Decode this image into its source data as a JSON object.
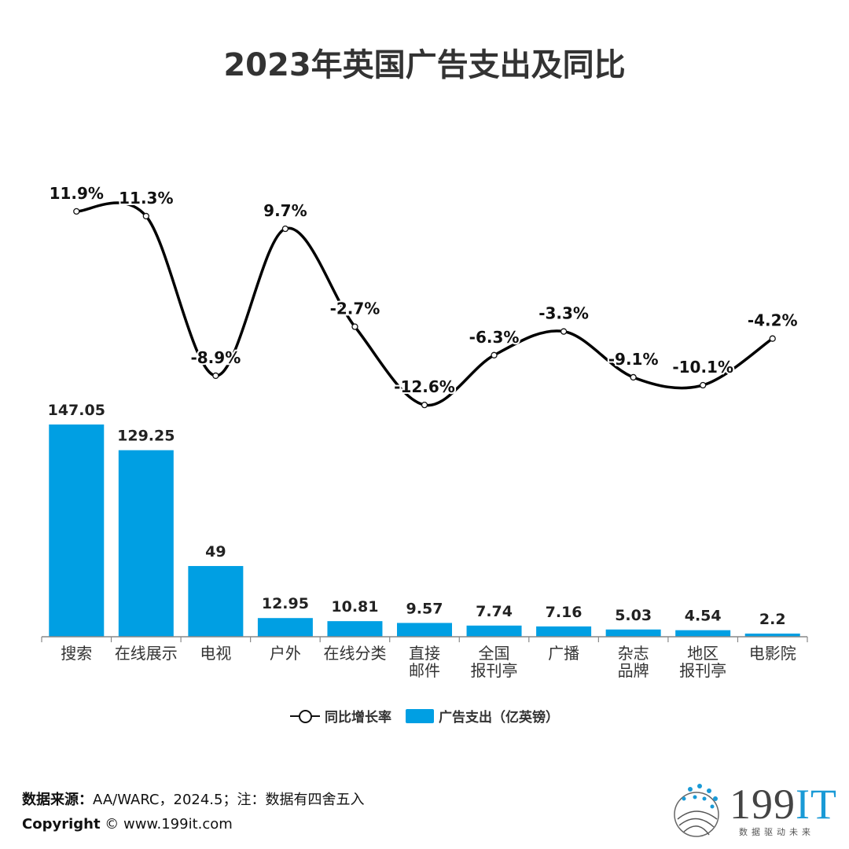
{
  "title": "2023年英国广告支出及同比",
  "chart_data": {
    "type": "bar+line",
    "categories": [
      [
        "搜索"
      ],
      [
        "在线展示"
      ],
      [
        "电视"
      ],
      [
        "户外"
      ],
      [
        "在线分类"
      ],
      [
        "直接",
        "邮件"
      ],
      [
        "全国",
        "报刊亭"
      ],
      [
        "广播"
      ],
      [
        "杂志",
        "品牌"
      ],
      [
        "地区",
        "报刊亭"
      ],
      [
        "电影院"
      ]
    ],
    "series": [
      {
        "name": "广告支出（亿英镑）",
        "type": "bar",
        "values": [
          147.05,
          129.25,
          49,
          12.95,
          10.81,
          9.57,
          7.74,
          7.16,
          5.03,
          4.54,
          2.2
        ],
        "labels": [
          "147.05",
          "129.25",
          "49",
          "12.95",
          "10.81",
          "9.57",
          "7.74",
          "7.16",
          "5.03",
          "4.54",
          "2.2"
        ]
      },
      {
        "name": "同比增长率",
        "type": "line",
        "values": [
          11.9,
          11.3,
          -8.9,
          9.7,
          -2.7,
          -12.6,
          -6.3,
          -3.3,
          -9.1,
          -10.1,
          -4.2
        ],
        "labels": [
          "11.9%",
          "11.3%",
          "-8.9%",
          "9.7%",
          "-2.7%",
          "-12.6%",
          "-6.3%",
          "-3.3%",
          "-9.1%",
          "-10.1%",
          "-4.2%"
        ]
      }
    ],
    "bar_color": "#009fe3",
    "line_color": "#000000",
    "grid": false
  },
  "legend": {
    "line_label": "同比增长率",
    "bar_label": "广告支出（亿英镑）"
  },
  "footer": {
    "source_label": "数据来源：",
    "source_text": "AA/WARC，2024.5；注：数据有四舍五入",
    "copyright_label": "Copyright",
    "copyright_text": " © www.199it.com"
  },
  "logo": {
    "main": "199",
    "accent": "IT",
    "tagline": "数据驱动未来"
  }
}
